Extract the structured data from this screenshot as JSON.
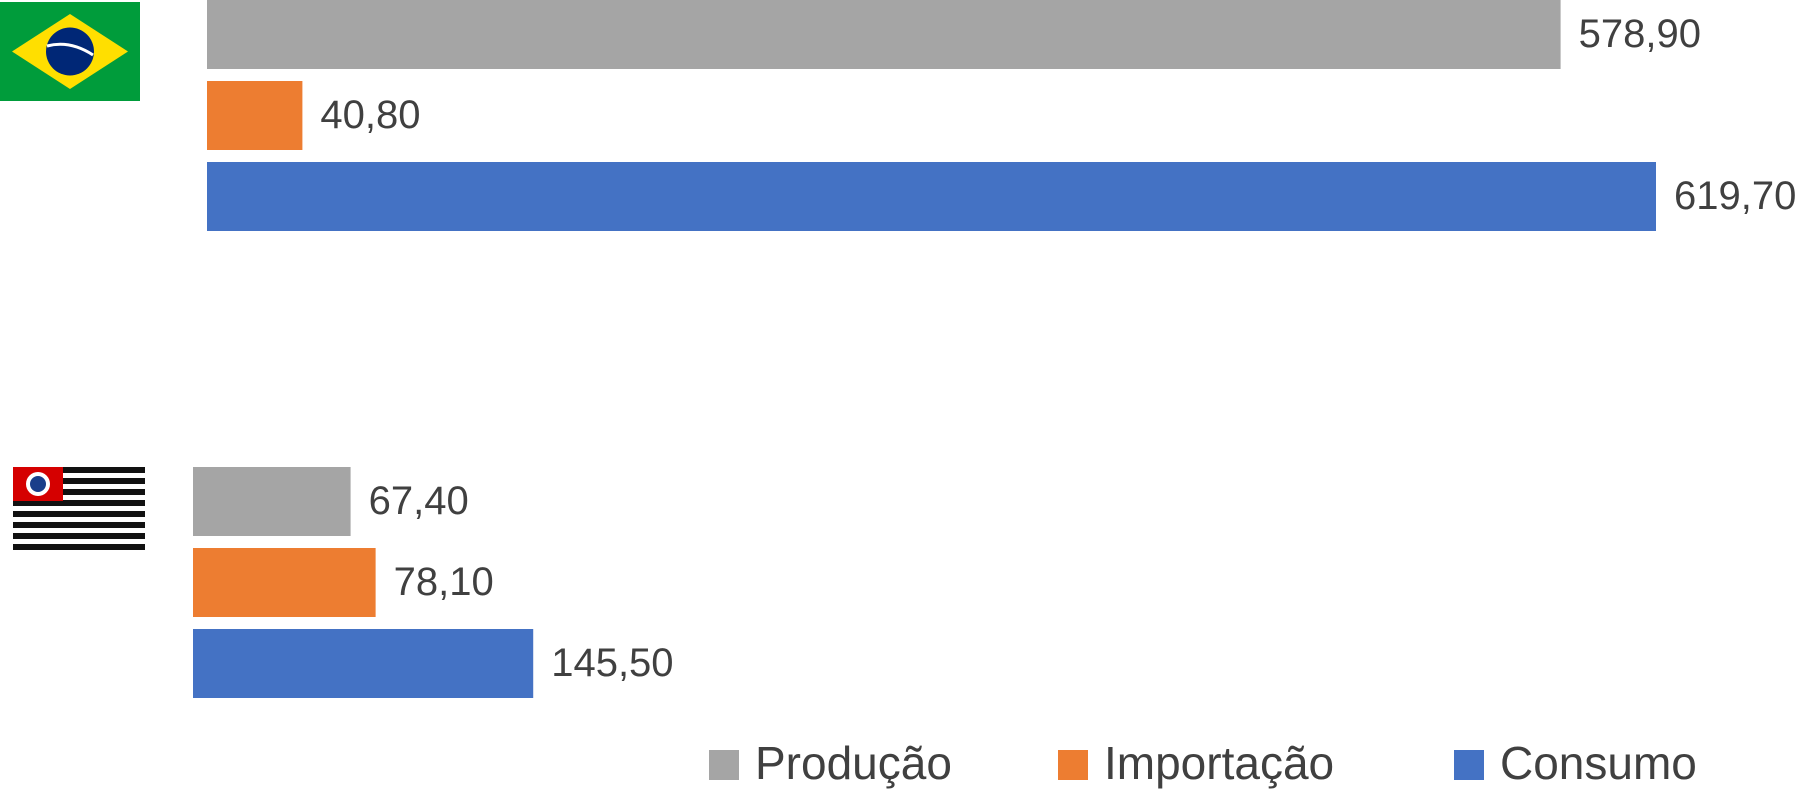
{
  "chart_data": {
    "type": "bar",
    "orientation": "horizontal",
    "categories": [
      null,
      null
    ],
    "series": [
      {
        "name": "Produção",
        "color": "#a5a5a5",
        "values": [
          578.9,
          67.4
        ],
        "value_labels": [
          "578,90",
          "67,40"
        ]
      },
      {
        "name": "Importação",
        "color": "#ed7d31",
        "values": [
          40.8,
          78.1
        ],
        "value_labels": [
          "40,80",
          "78,10"
        ]
      },
      {
        "name": "Consumo",
        "color": "#4472c4",
        "values": [
          619.7,
          145.5
        ],
        "value_labels": [
          "619,70",
          "145,50"
        ]
      }
    ],
    "legend": "bottom"
  }
}
